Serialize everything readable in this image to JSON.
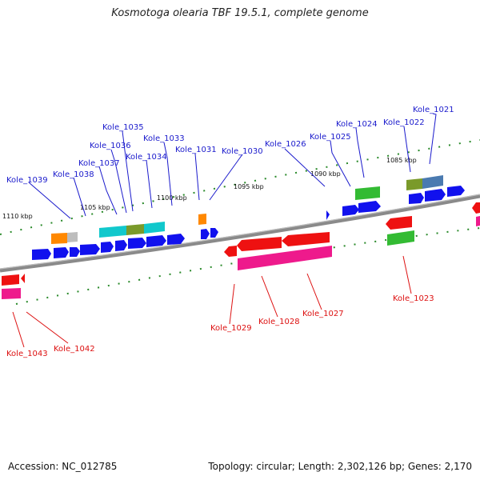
{
  "title": "Kosmotoga olearia TBF 19.5.1, complete genome",
  "footer": {
    "accession": "Accession: NC_012785",
    "topology": "Topology: circular; Length: 2,302,126 bp; Genes: 2,170"
  },
  "ticks": [
    "1110 kbp",
    "1105 kbp",
    "1100 kbp",
    "1095 kbp",
    "1090 kbp",
    "1085 kbp"
  ],
  "gene_labels": {
    "forward": [
      "Kole_1039",
      "Kole_1038",
      "Kole_1037",
      "Kole_1036",
      "Kole_1035",
      "Kole_1034",
      "Kole_1033",
      "Kole_1031",
      "Kole_1030",
      "Kole_1026",
      "Kole_1025",
      "Kole_1024",
      "Kole_1022",
      "Kole_1021"
    ],
    "reverse": [
      "Kole_1043",
      "Kole_1042",
      "Kole_1029",
      "Kole_1028",
      "Kole_1027",
      "Kole_1023"
    ]
  },
  "colors": {
    "backbone": "#8a8a8a",
    "forward_label": "#1a1acc",
    "reverse_label": "#dd1111",
    "tick_dash": "#1a7a1a",
    "cds_blue": "#1111ee",
    "cds_red": "#ee1111",
    "cds_pink": "#ee1a8c",
    "cds_green": "#33bb33",
    "cds_orange": "#ff8800",
    "cds_cyan": "#11c8cc",
    "cds_olive": "#7a9a2a",
    "cds_steel": "#4a7ab0",
    "cds_gray": "#bdbdbd"
  }
}
